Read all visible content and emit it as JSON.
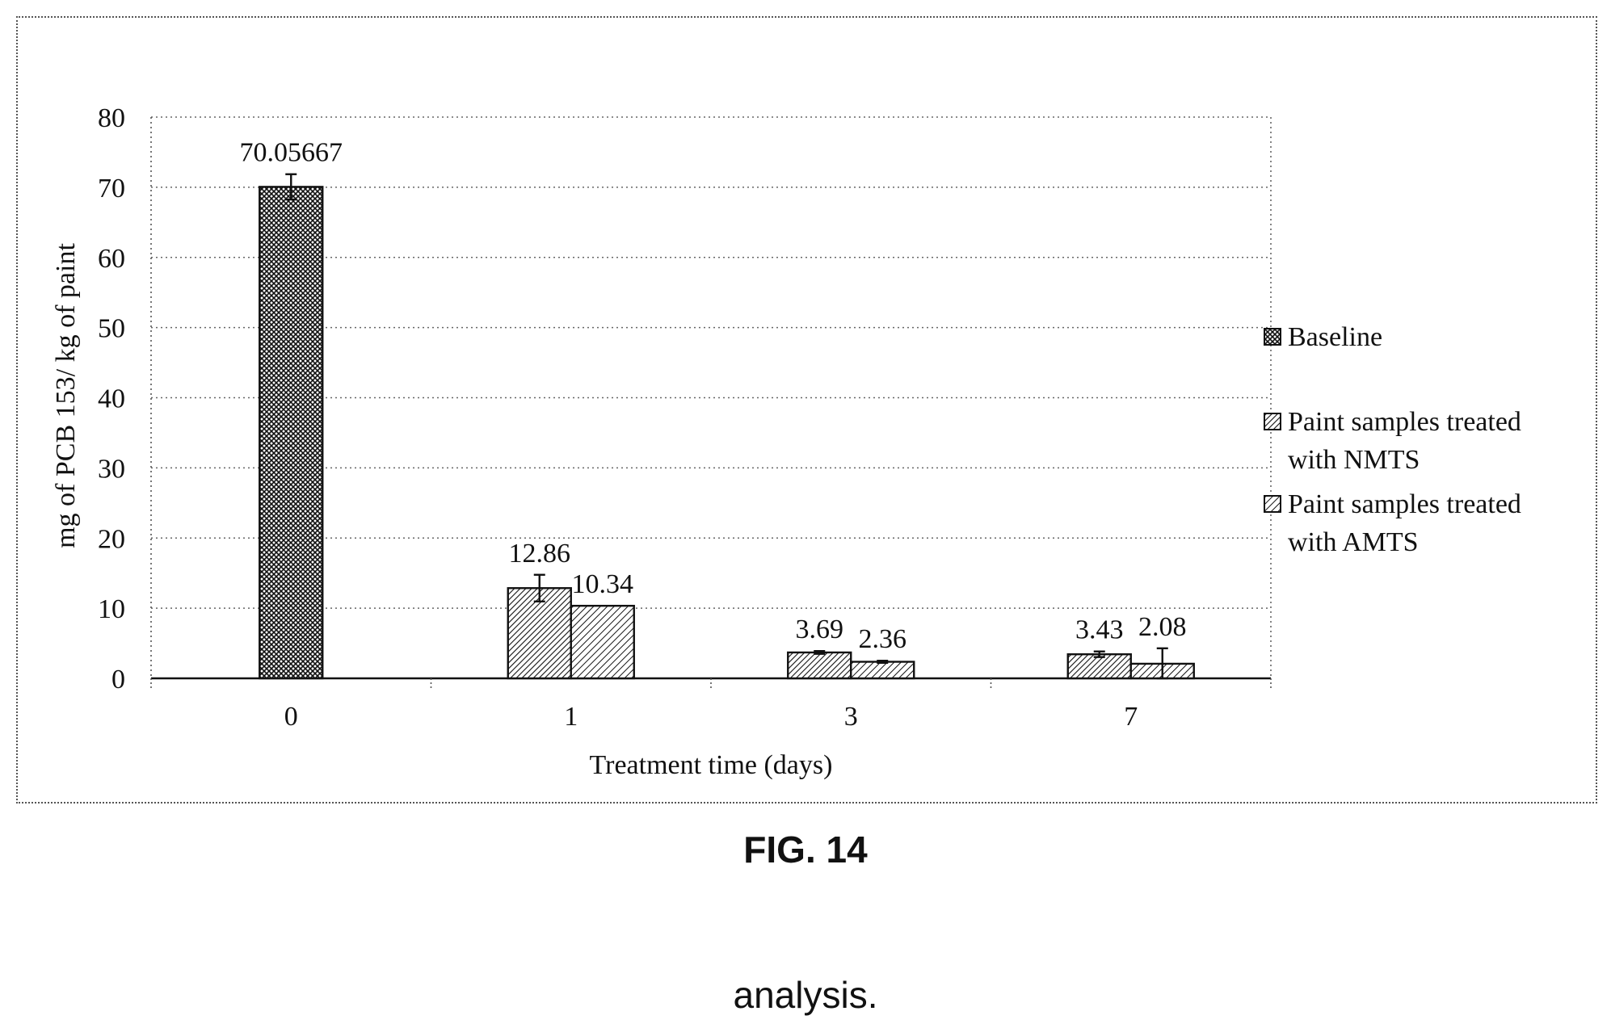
{
  "chart_data": {
    "type": "bar",
    "categories": [
      "0",
      "1",
      "3",
      "7"
    ],
    "series": [
      {
        "name": "Baseline",
        "values": [
          70.05667,
          null,
          null,
          null
        ],
        "errors": [
          1.8,
          null,
          null,
          null
        ],
        "labels": [
          "70.05667",
          "",
          "",
          ""
        ],
        "pattern": "crosshatch"
      },
      {
        "name": "Paint samples treated with NMTS",
        "values": [
          null,
          12.86,
          3.69,
          3.43
        ],
        "errors": [
          null,
          1.9,
          0.2,
          0.4
        ],
        "labels": [
          "",
          "12.86",
          "3.69",
          "3.43"
        ],
        "pattern": "diag-dense"
      },
      {
        "name": "Paint samples treated with AMTS",
        "values": [
          null,
          10.34,
          2.36,
          2.08
        ],
        "errors": [
          null,
          null,
          0.15,
          2.2
        ],
        "labels": [
          "",
          "10.34",
          "2.36",
          "2.08"
        ],
        "pattern": "diag"
      }
    ],
    "legend": [
      {
        "lines": [
          "Baseline"
        ]
      },
      {
        "lines": [
          "Paint samples treated",
          "with NMTS"
        ]
      },
      {
        "lines": [
          "Paint samples treated",
          "with AMTS"
        ]
      }
    ],
    "xlabel": "Treatment time (days)",
    "ylabel": "mg of PCB 153/ kg of paint",
    "ylim": [
      0,
      80
    ],
    "yticks": [
      0,
      10,
      20,
      30,
      40,
      50,
      60,
      70,
      80
    ],
    "grid": true,
    "legend_position": "right"
  },
  "caption": "FIG. 14",
  "trailing_text": "analysis."
}
